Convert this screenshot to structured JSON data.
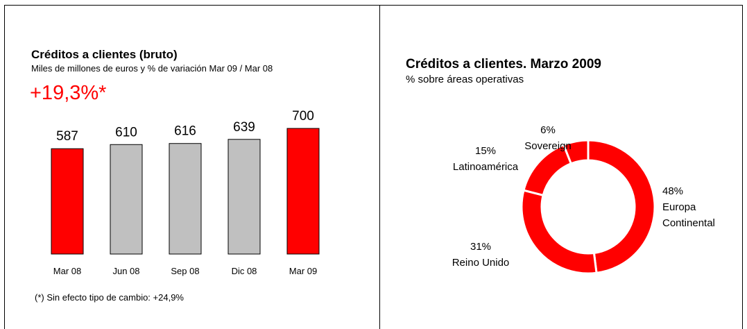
{
  "chart_data": [
    {
      "type": "bar",
      "title": "Créditos a clientes (bruto)",
      "subtitle": "Miles de millones de euros y % de variación Mar 09 / Mar 08",
      "annotation": "+19,3%*",
      "footnote": "(*) Sin efecto tipo de cambio: +24,9%",
      "categories": [
        "Mar 08",
        "Jun 08",
        "Sep 08",
        "Dic 08",
        "Mar 09"
      ],
      "values": [
        587,
        610,
        616,
        639,
        700
      ],
      "colors": [
        "#ff0000",
        "#c0c0c0",
        "#c0c0c0",
        "#c0c0c0",
        "#ff0000"
      ]
    },
    {
      "type": "donut",
      "title": "Créditos a clientes. Marzo 2009",
      "subtitle": "% sobre áreas operativas",
      "categories": [
        "Europa Continental",
        "Reino Unido",
        "Latinoamérica",
        "Sovereign"
      ],
      "values": [
        48,
        31,
        15,
        6
      ],
      "value_labels": [
        "48%",
        "31%",
        "15%",
        "6%"
      ],
      "color": "#ff0000"
    }
  ]
}
